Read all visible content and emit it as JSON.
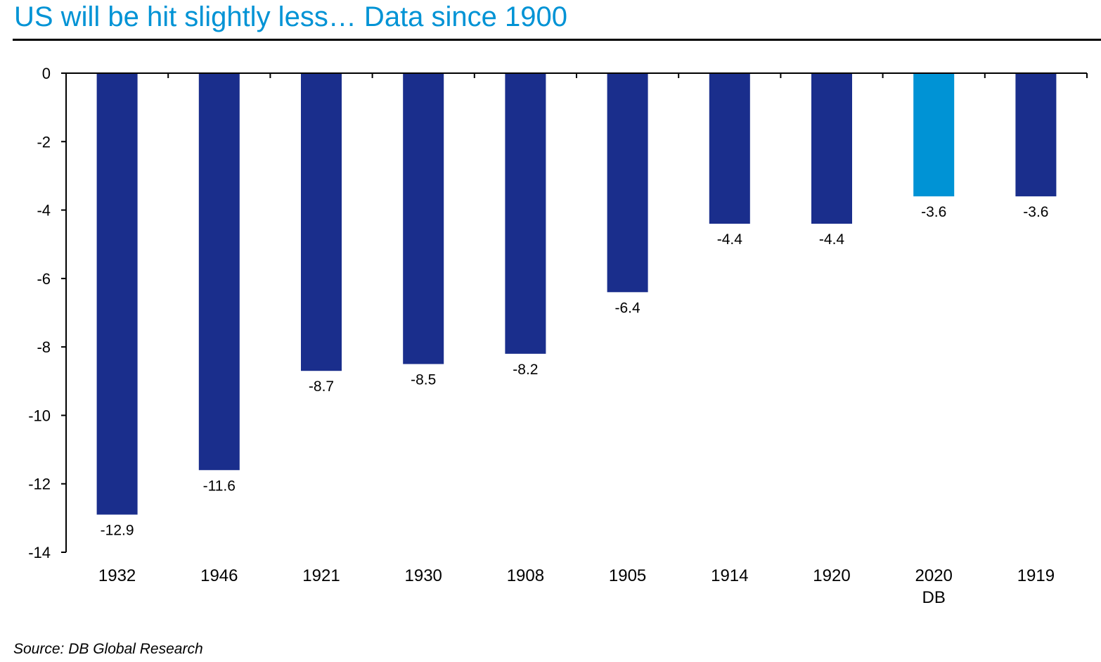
{
  "title": "US will be hit slightly less… Data since 1900",
  "source": "Source: DB Global Research",
  "colors": {
    "bar": "#1a2e8c",
    "highlight": "#0093d5",
    "title": "#0093d5"
  },
  "chart_data": {
    "type": "bar",
    "categories": [
      "1932",
      "1946",
      "1921",
      "1930",
      "1908",
      "1905",
      "1914",
      "1920",
      "2020",
      "1919"
    ],
    "category_sublabels": [
      "",
      "",
      "",
      "",
      "",
      "",
      "",
      "",
      "DB",
      ""
    ],
    "values": [
      -12.9,
      -11.6,
      -8.7,
      -8.5,
      -8.2,
      -6.4,
      -4.4,
      -4.4,
      -3.6,
      -3.6
    ],
    "data_labels": [
      "-12.9",
      "-11.6",
      "-8.7",
      "-8.5",
      "-8.2",
      "-6.4",
      "-4.4",
      "-4.4",
      "-3.6",
      "-3.6"
    ],
    "highlight_index": 8,
    "ylim": [
      -14,
      0
    ],
    "yticks": [
      0,
      -2,
      -4,
      -6,
      -8,
      -10,
      -12,
      -14
    ],
    "xlabel": "",
    "ylabel": "",
    "grid": false,
    "legend": "none"
  }
}
